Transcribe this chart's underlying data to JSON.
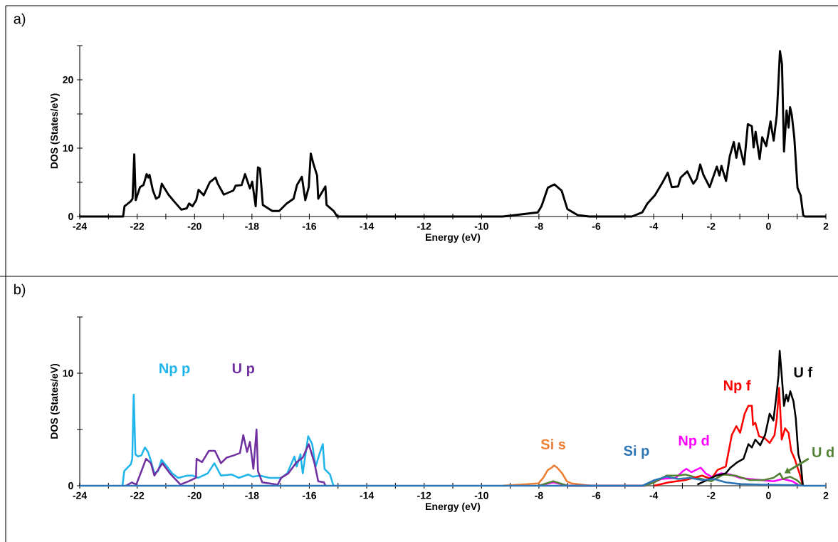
{
  "chart_data": [
    {
      "type": "line",
      "xlabel": "Energy (eV)",
      "ylabel": "DOS (States/eV)",
      "annotations": [
        "a)"
      ],
      "xlim": [
        -24,
        2
      ],
      "ylim": [
        0,
        25
      ],
      "xticks": [
        -24,
        {
          "value": -23,
          "label": null
        },
        -22,
        {
          "value": -21,
          "label": null
        },
        -20,
        {
          "value": -19,
          "label": null
        },
        -18,
        {
          "value": -17,
          "label": null
        },
        -16,
        {
          "value": -15,
          "label": null
        },
        -14,
        {
          "value": -13,
          "label": null
        },
        -12,
        {
          "value": -11,
          "label": null
        },
        -10,
        {
          "value": -9,
          "label": null
        },
        -8,
        {
          "value": -7,
          "label": null
        },
        -6,
        {
          "value": -5,
          "label": null
        },
        -4,
        {
          "value": -3,
          "label": null
        },
        -2,
        {
          "value": -1,
          "label": null
        },
        0,
        {
          "value": 1,
          "label": null
        },
        2
      ],
      "yticks": [
        0,
        {
          "value": 5,
          "label": null
        },
        10,
        {
          "value": 15,
          "label": null
        },
        20,
        {
          "value": 25,
          "label": null
        }
      ],
      "series": [
        {
          "color": "#000000",
          "x": [
            -24,
            -22.49,
            -22.44,
            -22.23,
            -22.16,
            -22.1,
            -22.05,
            -21.9,
            -21.78,
            -21.67,
            -21.61,
            -21.57,
            -21.45,
            -21.34,
            -21.23,
            -21.14,
            -21.04,
            -20.91,
            -20.71,
            -20.46,
            -20.27,
            -20.19,
            -20.07,
            -19.94,
            -19.86,
            -19.68,
            -19.47,
            -19.27,
            -19.19,
            -18.98,
            -18.65,
            -18.57,
            -18.36,
            -18.24,
            -18.07,
            -17.99,
            -17.87,
            -17.79,
            -17.72,
            -17.62,
            -17.29,
            -17.05,
            -16.79,
            -16.55,
            -16.43,
            -16.26,
            -16.14,
            -16.02,
            -15.95,
            -15.85,
            -15.73,
            -15.69,
            -15.44,
            -15.4,
            -15.15,
            -15.03,
            -9.26,
            -8.04,
            -7.91,
            -7.69,
            -7.46,
            -7.21,
            -7.01,
            -6.65,
            -6.25,
            -4.76,
            -4.4,
            -4.22,
            -3.96,
            -3.69,
            -3.51,
            -3.37,
            -3.15,
            -3.06,
            -2.83,
            -2.62,
            -2.5,
            -2.38,
            -2.27,
            -2.05,
            -1.8,
            -1.71,
            -1.64,
            -1.48,
            -1.35,
            -1.21,
            -1.12,
            -1.03,
            -0.85,
            -0.72,
            -0.58,
            -0.52,
            -0.45,
            -0.31,
            -0.22,
            -0.08,
            0.07,
            0.18,
            0.29,
            0.4,
            0.47,
            0.54,
            0.63,
            0.7,
            0.75,
            0.81,
            0.9,
            1.01,
            1.12,
            1.21,
            1.26,
            2
          ],
          "values": [
            0,
            0,
            1.5,
            2.2,
            2.6,
            9.1,
            2.4,
            4.3,
            4.6,
            6.2,
            5.7,
            6.1,
            3.8,
            2.6,
            2.9,
            4.8,
            4.1,
            3.2,
            2.2,
            1.0,
            1.2,
            1.9,
            1.5,
            2.4,
            3.9,
            3.1,
            5.0,
            5.7,
            4.8,
            3.2,
            3.8,
            4.5,
            4.6,
            6.2,
            4.1,
            5.1,
            1.5,
            7.2,
            7.0,
            1.7,
            0.8,
            0.8,
            1.9,
            2.6,
            4.6,
            5.8,
            2.4,
            4.3,
            9.2,
            7.6,
            6.0,
            2.6,
            4.4,
            1.7,
            0.8,
            0,
            0,
            0.6,
            1.5,
            4.2,
            4.7,
            3.8,
            1.1,
            0.2,
            0,
            0,
            0.6,
            1.9,
            3.1,
            5.0,
            6.4,
            4.3,
            4.4,
            5.7,
            6.6,
            4.8,
            5.5,
            7.6,
            6.1,
            4.3,
            7.3,
            6.0,
            7.4,
            5.2,
            8.8,
            10.9,
            8.6,
            10.7,
            7.6,
            13.5,
            13.2,
            10.1,
            12.4,
            8.4,
            11.6,
            10.3,
            13.9,
            11.1,
            14.9,
            24.2,
            22.3,
            9.5,
            15.5,
            13.0,
            16.0,
            14.9,
            11.5,
            4.2,
            3.1,
            0.2,
            0,
            0
          ]
        }
      ]
    },
    {
      "type": "line",
      "xlabel": "Energy (eV)",
      "ylabel": "DOS (States/eV)",
      "annotations": [
        "b)"
      ],
      "xlim": [
        -24,
        2
      ],
      "ylim": [
        0,
        15
      ],
      "xticks": [
        -24,
        {
          "value": -23,
          "label": null
        },
        -22,
        {
          "value": -21,
          "label": null
        },
        -20,
        {
          "value": -19,
          "label": null
        },
        -18,
        {
          "value": -17,
          "label": null
        },
        -16,
        {
          "value": -15,
          "label": null
        },
        -14,
        {
          "value": -13,
          "label": null
        },
        -12,
        {
          "value": -11,
          "label": null
        },
        -10,
        {
          "value": -9,
          "label": null
        },
        -8,
        {
          "value": -7,
          "label": null
        },
        -6,
        {
          "value": -5,
          "label": null
        },
        -4,
        {
          "value": -3,
          "label": null
        },
        -2,
        {
          "value": -1,
          "label": null
        },
        0,
        {
          "value": 1,
          "label": null
        },
        2
      ],
      "yticks": [
        0,
        {
          "value": 5,
          "label": null
        },
        10,
        {
          "value": 15,
          "label": null
        }
      ],
      "series": [
        {
          "name": "Np p",
          "color": "#1fb4ea",
          "x": [
            -22.51,
            -22.45,
            -22.22,
            -22.17,
            -22.12,
            -22.06,
            -21.98,
            -21.85,
            -21.73,
            -21.62,
            -21.52,
            -21.4,
            -21.27,
            -21.15,
            -21.02,
            -20.78,
            -20.57,
            -20.24,
            -20.07,
            -19.87,
            -19.54,
            -19.31,
            -19.08,
            -18.71,
            -18.46,
            -18.13,
            -17.97,
            -17.72,
            -17.39,
            -16.98,
            -16.77,
            -16.52,
            -16.44,
            -16.31,
            -16.23,
            -16.04,
            -15.9,
            -15.78,
            -15.65,
            -15.53,
            -15.47,
            -15.28,
            -15.16
          ],
          "values": [
            0,
            1.3,
            1.9,
            2.4,
            8.1,
            2.8,
            2.6,
            2.7,
            3.4,
            3.0,
            2.2,
            1.1,
            1.3,
            2.3,
            1.9,
            1.1,
            0.7,
            0.9,
            0.9,
            0.7,
            1.1,
            2.0,
            0.9,
            1.0,
            0.7,
            1.0,
            0.8,
            0.9,
            0.7,
            0.7,
            1.1,
            2.6,
            1.7,
            2.8,
            1.1,
            4.4,
            3.7,
            1.7,
            2.8,
            3.7,
            1.5,
            1.0,
            0
          ]
        },
        {
          "name": "U p",
          "color": "#7030a0",
          "x": [
            -22.39,
            -22.18,
            -22.03,
            -21.85,
            -21.69,
            -21.52,
            -21.4,
            -21.12,
            -20.86,
            -20.49,
            -20.2,
            -19.95,
            -19.93,
            -19.74,
            -19.5,
            -19.29,
            -19.08,
            -18.88,
            -18.63,
            -18.42,
            -18.3,
            -18.17,
            -18.07,
            -17.95,
            -17.84,
            -17.79,
            -17.64,
            -17.1,
            -16.98,
            -16.73,
            -16.44,
            -16.23,
            -16.02,
            -15.82,
            -15.69,
            -15.49,
            -15.44
          ],
          "values": [
            0,
            0.3,
            0.1,
            1.3,
            2.4,
            2.0,
            0.9,
            2.0,
            1.1,
            0.1,
            0.4,
            0.7,
            2.4,
            2.1,
            3.1,
            3.1,
            2.0,
            2.5,
            2.7,
            2.9,
            4.5,
            3.0,
            3.9,
            1.5,
            5.0,
            1.3,
            0.3,
            0.1,
            0.7,
            1.1,
            2.1,
            2.5,
            3.7,
            2.0,
            0.4,
            0.3,
            0
          ]
        },
        {
          "name": "Si s",
          "color": "#ed7d31",
          "x": [
            -9.25,
            -8.02,
            -7.85,
            -7.69,
            -7.56,
            -7.47,
            -7.36,
            -7.19,
            -7.03,
            -6.86,
            -6.21
          ],
          "values": [
            0,
            0.2,
            0.7,
            1.4,
            1.6,
            1.8,
            1.6,
            1.1,
            0.4,
            0.2,
            0
          ]
        },
        {
          "name": "Si p",
          "color": "#2e75b6",
          "x": [
            -24,
            -4.39,
            -3.98,
            -3.56,
            -3.15,
            -2.73,
            -2.32,
            -1.9,
            -1.49,
            -0.99,
            -0.25,
            0.99,
            1.24,
            2
          ],
          "values": [
            0,
            0,
            0.5,
            0.8,
            0.6,
            0.7,
            0.5,
            0.6,
            0.3,
            0.15,
            0.1,
            0.05,
            0,
            0
          ]
        },
        {
          "name": "Np d",
          "color": "#ff00ff",
          "x": [
            -8.0,
            -7.5,
            -7.0,
            -4.31,
            -3.73,
            -3.23,
            -2.98,
            -2.86,
            -2.69,
            -2.53,
            -2.36,
            -2.19,
            -1.99,
            -1.66,
            -1.33,
            -0.99,
            -0.66,
            -0.25,
            0.17,
            0.5,
            0.83,
            1.08
          ],
          "values": [
            0,
            0.3,
            0,
            0,
            0.6,
            0.7,
            1.3,
            1.5,
            1.2,
            1.4,
            1.6,
            1.1,
            0.8,
            1.1,
            1.0,
            0.7,
            0.6,
            0.5,
            0.4,
            0.6,
            0.4,
            0
          ]
        },
        {
          "name": "Np f",
          "color": "#ff0000",
          "x": [
            -3.98,
            -3.48,
            -2.9,
            -2.32,
            -1.99,
            -1.78,
            -1.49,
            -1.28,
            -1.12,
            -0.99,
            -0.83,
            -0.7,
            -0.58,
            -0.54,
            -0.46,
            -0.33,
            -0.12,
            0.04,
            0.21,
            0.29,
            0.37,
            0.46,
            0.58,
            0.7,
            0.79,
            0.91,
            1.08,
            1.2
          ],
          "values": [
            0,
            0.3,
            0.5,
            0.9,
            0.6,
            1.4,
            1.7,
            4.5,
            5.3,
            4.7,
            6.4,
            7.1,
            7.1,
            5.4,
            5.6,
            4.4,
            4.2,
            3.8,
            4.5,
            6.0,
            8.7,
            4.1,
            5.1,
            4.7,
            3.1,
            2.4,
            1.1,
            0
          ]
        },
        {
          "name": "U f",
          "color": "#000000",
          "x": [
            -2.48,
            -2.07,
            -1.82,
            -1.49,
            -1.33,
            -1.08,
            -0.87,
            -0.7,
            -0.58,
            -0.46,
            -0.29,
            -0.12,
            0.04,
            0.17,
            0.27,
            0.35,
            0.39,
            0.46,
            0.54,
            0.62,
            0.68,
            0.76,
            0.87,
            0.95,
            1.04,
            1.12,
            1.2
          ],
          "values": [
            0.1,
            0.6,
            0.9,
            1.1,
            1.6,
            2.1,
            2.4,
            3.7,
            3.4,
            4.1,
            3.6,
            4.5,
            6.4,
            5.8,
            7.9,
            9.8,
            12.0,
            9.8,
            7.1,
            8.1,
            7.5,
            8.4,
            7.5,
            6.0,
            2.8,
            2.0,
            0
          ]
        },
        {
          "name": "U d",
          "color": "#548235",
          "x": [
            -8.0,
            -7.5,
            -7.0,
            -4.31,
            -3.98,
            -3.56,
            -3.15,
            -2.9,
            -2.48,
            -1.99,
            -1.57,
            -1.16,
            -0.66,
            -0.17,
            0.17,
            0.4,
            0.5,
            0.75,
            0.99,
            1.2
          ],
          "values": [
            0,
            0.4,
            0,
            0,
            0.3,
            0.9,
            0.9,
            1.0,
            0.7,
            0.4,
            1.0,
            0.9,
            0.5,
            0.5,
            0.7,
            1.1,
            0.6,
            0.8,
            0.5,
            0
          ]
        }
      ]
    }
  ]
}
